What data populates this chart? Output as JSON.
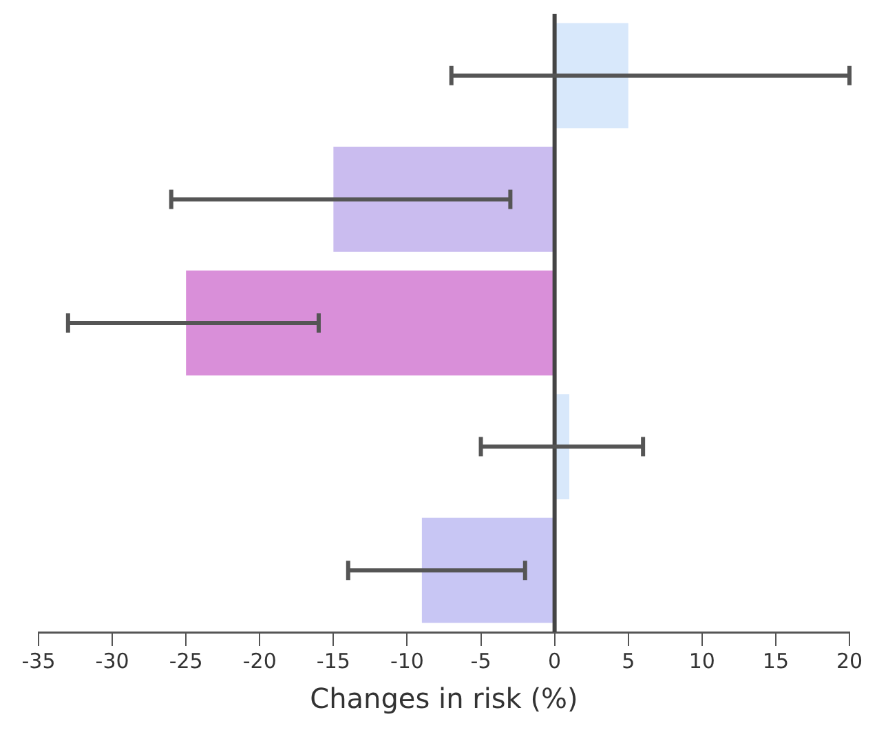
{
  "chart_data": {
    "type": "bar",
    "orientation": "horizontal",
    "xlabel": "Changes in risk (%)",
    "categories": [
      null,
      null,
      null,
      null,
      null
    ],
    "values": [
      5,
      -15,
      -25,
      1,
      -9
    ],
    "colors": [
      "#d8e8fb",
      "#cabcef",
      "#d98fd9",
      "#d8e8fb",
      "#c8c6f4"
    ],
    "errors": [
      [
        -7,
        20
      ],
      [
        -26,
        -3
      ],
      [
        -33,
        -16
      ],
      [
        -5,
        6
      ],
      [
        -14,
        -2
      ]
    ],
    "xlim": [
      -35,
      20
    ],
    "xticks": [
      -35,
      -30,
      -25,
      -20,
      -15,
      -10,
      -5,
      0,
      5,
      10,
      15,
      20
    ],
    "ref_lines": [
      {
        "axis": "x",
        "value": 0,
        "color": "#444444"
      }
    ],
    "tick_labels": "x",
    "grid": false
  }
}
